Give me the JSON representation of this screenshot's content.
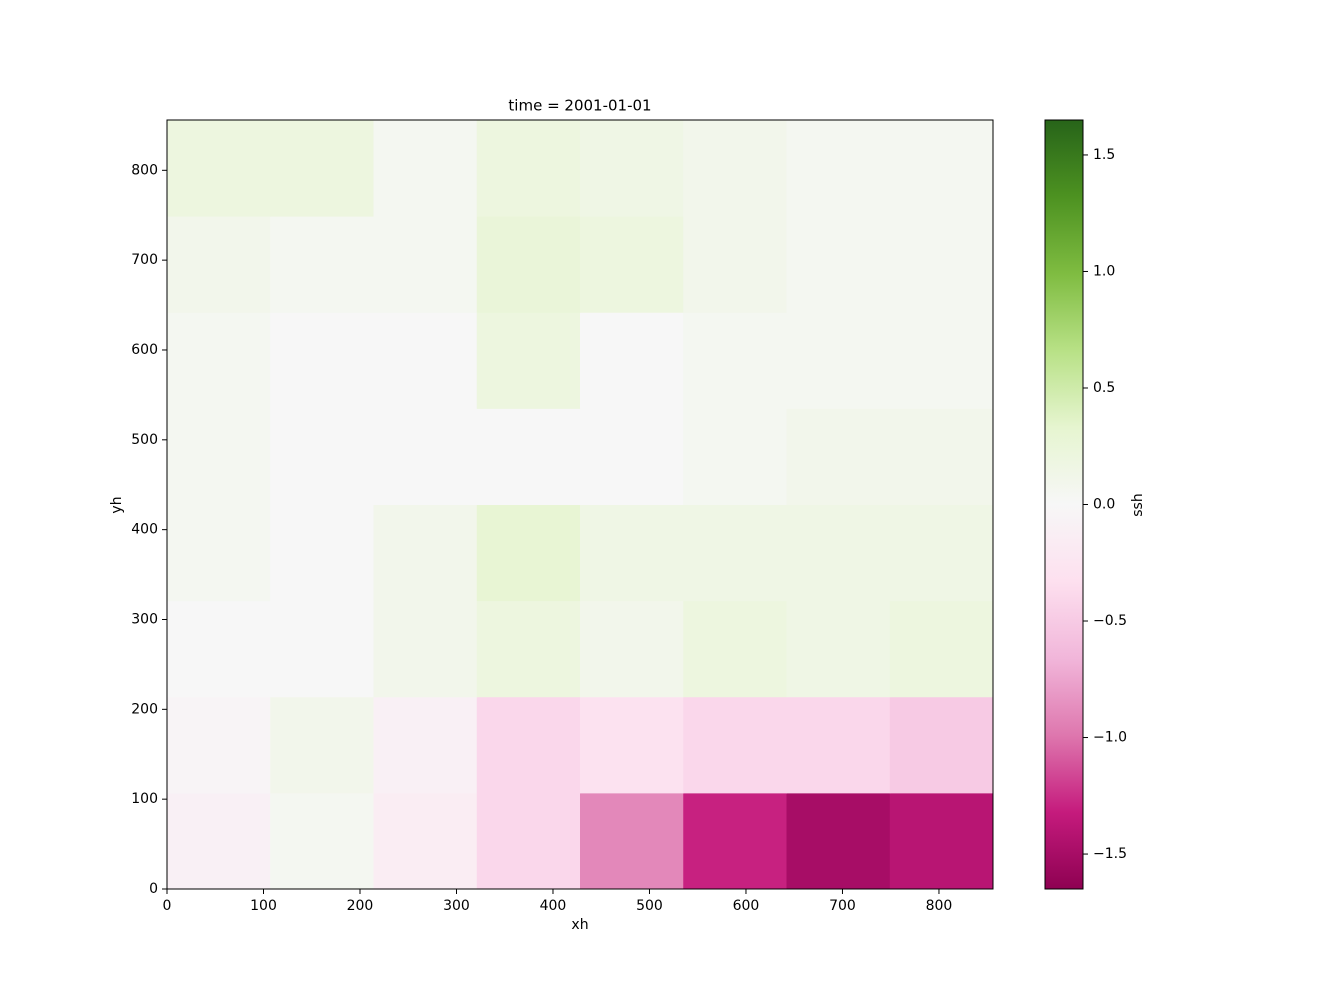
{
  "chart_data": {
    "type": "heatmap",
    "title": "time = 2001-01-01",
    "x_label": "xh",
    "y_label": "yh",
    "colorbar_label": "ssh",
    "colormap": "PiYG",
    "xlim": [
      0,
      856
    ],
    "ylim": [
      0,
      856
    ],
    "xticks": [
      0,
      100,
      200,
      300,
      400,
      500,
      600,
      700,
      800
    ],
    "yticks": [
      0,
      100,
      200,
      300,
      400,
      500,
      600,
      700,
      800
    ],
    "clim": [
      -1.65,
      1.65
    ],
    "cticks": [
      {
        "value": -1.5,
        "label": "−1.5"
      },
      {
        "value": -1.0,
        "label": "−1.0"
      },
      {
        "value": -0.5,
        "label": "−0.5"
      },
      {
        "value": 0,
        "label": "0.0"
      },
      {
        "value": 0.5,
        "label": "0.5"
      },
      {
        "value": 1.0,
        "label": "1.0"
      },
      {
        "value": 1.5,
        "label": "1.5"
      }
    ],
    "x_bins": [
      0,
      107,
      214,
      321,
      428,
      535,
      642,
      749,
      856
    ],
    "y_bins": [
      0,
      107,
      214,
      321,
      428,
      535,
      642,
      749,
      856
    ],
    "values": [
      [
        -0.1,
        0.05,
        -0.15,
        -0.4,
        -0.9,
        -1.3,
        -1.5,
        -1.4
      ],
      [
        -0.05,
        0.1,
        -0.1,
        -0.4,
        -0.3,
        -0.4,
        -0.4,
        -0.5
      ],
      [
        0,
        0,
        0.1,
        0.2,
        0.1,
        0.2,
        0.15,
        0.2
      ],
      [
        0.05,
        0,
        0.1,
        0.3,
        0.15,
        0.15,
        0.15,
        0.15
      ],
      [
        0.05,
        0,
        0,
        0,
        0,
        0.05,
        0.1,
        0.1
      ],
      [
        0.05,
        0,
        0,
        0.2,
        0,
        0.05,
        0.05,
        0.05
      ],
      [
        0.1,
        0.05,
        0.05,
        0.25,
        0.2,
        0.1,
        0.05,
        0.05
      ],
      [
        0.2,
        0.2,
        0.05,
        0.2,
        0.15,
        0.1,
        0.05,
        0.05
      ]
    ]
  }
}
